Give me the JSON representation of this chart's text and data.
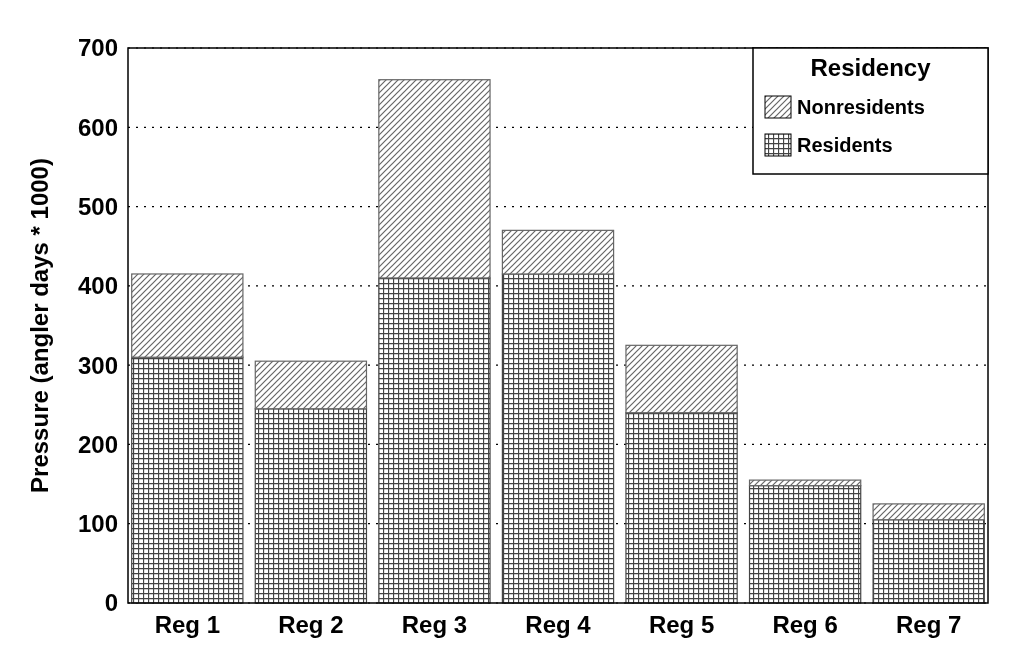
{
  "chart_data": {
    "type": "bar",
    "stacked": true,
    "ylabel": "Pressure (angler days * 1000)",
    "legend_title": "Residency",
    "legend": "top right",
    "grid": "y",
    "categories": [
      "Reg 1",
      "Reg 2",
      "Reg 3",
      "Reg 4",
      "Reg 5",
      "Reg 6",
      "Reg 7"
    ],
    "ylim": [
      0,
      700
    ],
    "yticks": [
      0,
      100,
      200,
      300,
      400,
      500,
      600,
      700
    ],
    "series": [
      {
        "name": "Residents",
        "color": "#444444",
        "values": [
          310,
          245,
          410,
          415,
          240,
          148,
          105
        ]
      },
      {
        "name": "Nonresidents",
        "color": "#666666",
        "values": [
          105,
          60,
          250,
          55,
          85,
          7,
          20
        ]
      }
    ]
  }
}
